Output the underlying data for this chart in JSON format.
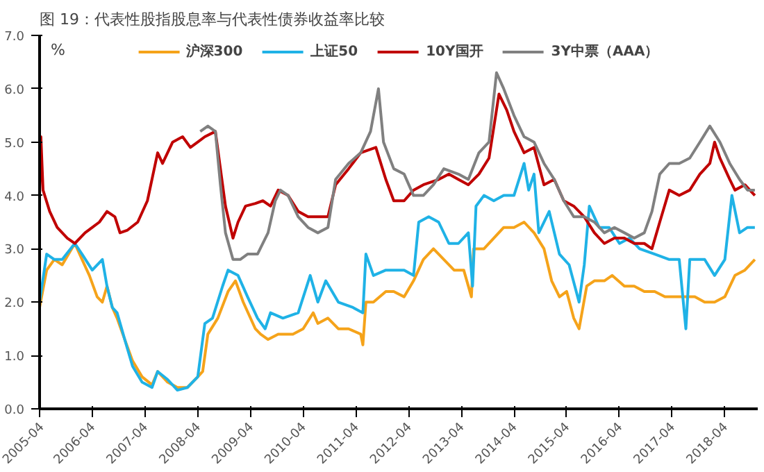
{
  "chart_data": {
    "type": "line",
    "title": "图 19：代表性股指股息率与代表性债券收益率比较",
    "ylabel": "%",
    "xlim": [
      "2005-04-01",
      "2018-11-15"
    ],
    "xticks": [
      "2005-04",
      "2006-04",
      "2007-04",
      "2008-04",
      "2009-04",
      "2010-04",
      "2011-04",
      "2012-04",
      "2013-04",
      "2014-04",
      "2015-04",
      "2016-04",
      "2017-04",
      "2018-04"
    ],
    "ylim": [
      0,
      7
    ],
    "yticks": [
      {
        "value": 0,
        "label": "0.0"
      },
      {
        "value": 1,
        "label": "1.0"
      },
      {
        "value": 2,
        "label": "2.0"
      },
      {
        "value": 3,
        "label": "3.0"
      },
      {
        "value": 4,
        "label": "4.0"
      },
      {
        "value": 5,
        "label": "5.0"
      },
      {
        "value": 6,
        "label": "6.0"
      },
      {
        "value": 7,
        "label": "7.0"
      }
    ],
    "grid": false,
    "legend": "top",
    "marker": "none",
    "line_style": "solid",
    "series": [
      {
        "name": "沪深300",
        "color": "#f5a31a",
        "x": [
          "2005-04-01",
          "2005-05-20",
          "2005-07-12",
          "2005-09-05",
          "2005-12-01",
          "2006-01-20",
          "2006-03-12",
          "2006-05-05",
          "2006-06-10",
          "2006-07-12",
          "2006-08-18",
          "2006-09-20",
          "2006-11-12",
          "2007-01-05",
          "2007-03-12",
          "2007-05-20",
          "2007-06-28",
          "2007-09-05",
          "2007-11-12",
          "2008-01-20",
          "2008-04-01",
          "2008-05-05",
          "2008-06-10",
          "2008-08-18",
          "2008-10-28",
          "2008-12-18",
          "2009-02-10",
          "2009-05-05",
          "2009-06-10",
          "2009-08-01",
          "2009-10-10",
          "2010-01-20",
          "2010-04-01",
          "2010-06-10",
          "2010-07-12",
          "2010-09-20",
          "2010-12-01",
          "2011-02-10",
          "2011-05-05",
          "2011-05-20",
          "2011-06-10",
          "2011-08-01",
          "2011-10-26",
          "2011-12-20",
          "2012-03-01",
          "2012-05-05",
          "2012-07-12",
          "2012-09-20",
          "2012-12-01",
          "2013-02-10",
          "2013-04-18",
          "2013-06-10",
          "2013-06-26",
          "2013-09-05",
          "2013-11-12",
          "2014-01-20",
          "2014-04-01",
          "2014-06-10",
          "2014-08-18",
          "2014-10-26",
          "2014-12-18",
          "2015-02-10",
          "2015-04-01",
          "2015-05-20",
          "2015-06-26",
          "2015-08-18",
          "2015-10-10",
          "2015-12-18",
          "2016-02-10",
          "2016-05-05",
          "2016-07-12",
          "2016-09-20",
          "2016-12-01",
          "2017-02-10",
          "2017-04-18",
          "2017-06-26",
          "2017-09-05",
          "2017-11-12",
          "2018-01-20",
          "2018-04-01",
          "2018-06-10",
          "2018-08-18",
          "2018-10-26"
        ],
        "values": [
          1.9,
          2.6,
          2.8,
          2.7,
          3.1,
          2.8,
          2.5,
          2.1,
          2.0,
          2.3,
          1.9,
          1.7,
          1.3,
          0.9,
          0.6,
          0.45,
          0.7,
          0.5,
          0.4,
          0.4,
          0.6,
          0.7,
          1.4,
          1.7,
          2.2,
          2.4,
          2.0,
          1.5,
          1.4,
          1.3,
          1.4,
          1.4,
          1.5,
          1.8,
          1.6,
          1.7,
          1.5,
          1.5,
          1.4,
          1.2,
          2.0,
          2.0,
          2.2,
          2.2,
          2.1,
          2.4,
          2.8,
          3.0,
          2.8,
          2.6,
          2.6,
          2.1,
          3.0,
          3.0,
          3.2,
          3.4,
          3.4,
          3.5,
          3.3,
          3.0,
          2.4,
          2.1,
          2.2,
          1.7,
          1.5,
          2.3,
          2.4,
          2.4,
          2.5,
          2.3,
          2.3,
          2.2,
          2.2,
          2.1,
          2.1,
          2.1,
          2.1,
          2.0,
          2.0,
          2.1,
          2.5,
          2.6,
          2.8
        ]
      },
      {
        "name": "上证50",
        "color": "#1fb2e6",
        "x": [
          "2005-04-01",
          "2005-05-20",
          "2005-07-12",
          "2005-09-05",
          "2005-12-01",
          "2006-01-20",
          "2006-04-01",
          "2006-06-10",
          "2006-07-12",
          "2006-08-18",
          "2006-09-20",
          "2006-11-12",
          "2007-01-05",
          "2007-03-12",
          "2007-05-20",
          "2007-06-28",
          "2007-09-05",
          "2007-11-12",
          "2008-01-20",
          "2008-04-01",
          "2008-05-20",
          "2008-07-12",
          "2008-09-20",
          "2008-10-28",
          "2009-01-05",
          "2009-03-12",
          "2009-05-20",
          "2009-07-12",
          "2009-08-18",
          "2009-11-12",
          "2010-02-26",
          "2010-05-20",
          "2010-07-12",
          "2010-09-05",
          "2010-12-01",
          "2011-03-12",
          "2011-05-20",
          "2011-06-10",
          "2011-08-01",
          "2011-10-26",
          "2011-12-20",
          "2012-03-01",
          "2012-05-05",
          "2012-06-10",
          "2012-08-18",
          "2012-10-26",
          "2013-01-05",
          "2013-03-12",
          "2013-05-20",
          "2013-06-18",
          "2013-07-12",
          "2013-09-05",
          "2013-11-12",
          "2014-01-20",
          "2014-04-01",
          "2014-06-10",
          "2014-07-12",
          "2014-08-18",
          "2014-09-20",
          "2014-12-01",
          "2015-02-10",
          "2015-04-18",
          "2015-06-26",
          "2015-08-01",
          "2015-09-05",
          "2015-11-12",
          "2016-01-20",
          "2016-04-01",
          "2016-06-10",
          "2016-08-18",
          "2016-12-01",
          "2017-03-12",
          "2017-05-20",
          "2017-07-05",
          "2017-08-01",
          "2017-11-12",
          "2018-01-20",
          "2018-04-01",
          "2018-05-20",
          "2018-07-12",
          "2018-09-05",
          "2018-10-26"
        ],
        "values": [
          2.0,
          2.9,
          2.8,
          2.8,
          3.1,
          2.9,
          2.6,
          2.8,
          2.3,
          1.9,
          1.8,
          1.3,
          0.8,
          0.5,
          0.4,
          0.7,
          0.55,
          0.35,
          0.4,
          0.6,
          1.6,
          1.7,
          2.3,
          2.6,
          2.5,
          2.1,
          1.7,
          1.5,
          1.8,
          1.7,
          1.8,
          2.5,
          2.0,
          2.4,
          2.0,
          1.9,
          1.8,
          2.9,
          2.5,
          2.6,
          2.6,
          2.6,
          2.5,
          3.5,
          3.6,
          3.5,
          3.1,
          3.1,
          3.3,
          2.3,
          3.8,
          4.0,
          3.9,
          4.0,
          4.0,
          4.6,
          4.1,
          4.4,
          3.3,
          3.7,
          2.9,
          2.7,
          2.0,
          2.7,
          3.8,
          3.4,
          3.4,
          3.1,
          3.2,
          3.0,
          2.9,
          2.8,
          2.8,
          1.5,
          2.8,
          2.8,
          2.5,
          2.8,
          4.0,
          3.3,
          3.4,
          3.4
        ]
      },
      {
        "name": "10Y国开",
        "color": "#c00000",
        "x": [
          "2005-04-01",
          "2005-04-10",
          "2005-04-25",
          "2005-06-10",
          "2005-08-01",
          "2005-10-10",
          "2005-12-01",
          "2006-02-10",
          "2006-04-01",
          "2006-05-20",
          "2006-07-12",
          "2006-09-05",
          "2006-10-10",
          "2006-12-01",
          "2007-02-10",
          "2007-04-18",
          "2007-06-28",
          "2007-08-01",
          "2007-10-10",
          "2007-12-18",
          "2008-02-10",
          "2008-04-01",
          "2008-05-20",
          "2008-08-01",
          "2008-09-05",
          "2008-10-10",
          "2008-12-01",
          "2009-01-05",
          "2009-02-26",
          "2009-05-05",
          "2009-06-26",
          "2009-08-18",
          "2009-10-10",
          "2009-12-18",
          "2010-02-26",
          "2010-05-05",
          "2010-07-12",
          "2010-09-20",
          "2010-11-12",
          "2011-02-10",
          "2011-05-05",
          "2011-08-18",
          "2011-10-26",
          "2011-12-20",
          "2012-03-01",
          "2012-05-05",
          "2012-07-12",
          "2012-10-26",
          "2013-01-05",
          "2013-03-12",
          "2013-05-20",
          "2013-08-01",
          "2013-10-10",
          "2013-12-18",
          "2014-02-10",
          "2014-04-01",
          "2014-06-10",
          "2014-08-18",
          "2014-10-26",
          "2015-01-05",
          "2015-03-12",
          "2015-05-20",
          "2015-08-01",
          "2015-10-10",
          "2015-12-18",
          "2016-02-26",
          "2016-05-05",
          "2016-07-12",
          "2016-09-20",
          "2016-11-12",
          "2017-01-05",
          "2017-03-12",
          "2017-05-20",
          "2017-08-01",
          "2017-10-10",
          "2017-12-18",
          "2018-01-20",
          "2018-02-26",
          "2018-04-01",
          "2018-05-05",
          "2018-06-10",
          "2018-08-18",
          "2018-10-26"
        ],
        "values": [
          4.0,
          5.1,
          4.1,
          3.7,
          3.4,
          3.2,
          3.1,
          3.3,
          3.4,
          3.5,
          3.7,
          3.6,
          3.3,
          3.35,
          3.5,
          3.9,
          4.8,
          4.6,
          5.0,
          5.1,
          4.9,
          5.0,
          5.1,
          5.2,
          4.5,
          3.8,
          3.2,
          3.5,
          3.8,
          3.85,
          3.9,
          3.8,
          4.1,
          4.0,
          3.7,
          3.6,
          3.6,
          3.6,
          4.2,
          4.5,
          4.8,
          4.9,
          4.3,
          3.9,
          3.9,
          4.1,
          4.2,
          4.3,
          4.4,
          4.3,
          4.2,
          4.4,
          4.7,
          5.9,
          5.6,
          5.2,
          4.8,
          4.9,
          4.2,
          4.3,
          3.9,
          3.8,
          3.6,
          3.3,
          3.1,
          3.2,
          3.2,
          3.1,
          3.1,
          3.0,
          3.5,
          4.1,
          4.0,
          4.1,
          4.4,
          4.6,
          5.0,
          4.7,
          4.5,
          4.3,
          4.1,
          4.2,
          4.0
        ]
      },
      {
        "name": "3Y中票（AAA）",
        "color": "#808080",
        "x": [
          "2008-04-18",
          "2008-06-10",
          "2008-08-01",
          "2008-09-05",
          "2008-10-10",
          "2008-12-01",
          "2009-01-20",
          "2009-03-12",
          "2009-05-20",
          "2009-08-01",
          "2009-09-20",
          "2009-10-26",
          "2009-12-18",
          "2010-02-26",
          "2010-05-05",
          "2010-07-12",
          "2010-09-20",
          "2010-11-12",
          "2011-02-10",
          "2011-05-05",
          "2011-07-12",
          "2011-09-05",
          "2011-10-10",
          "2011-12-20",
          "2012-03-01",
          "2012-05-05",
          "2012-07-12",
          "2012-09-20",
          "2012-12-01",
          "2013-03-12",
          "2013-05-20",
          "2013-08-01",
          "2013-10-10",
          "2013-12-01",
          "2014-01-20",
          "2014-04-01",
          "2014-06-10",
          "2014-08-18",
          "2014-10-26",
          "2015-01-05",
          "2015-03-12",
          "2015-05-20",
          "2015-08-01",
          "2015-10-10",
          "2015-12-18",
          "2016-02-26",
          "2016-05-05",
          "2016-07-12",
          "2016-09-20",
          "2016-11-12",
          "2017-01-05",
          "2017-03-12",
          "2017-05-20",
          "2017-08-01",
          "2017-10-10",
          "2017-12-18",
          "2018-02-26",
          "2018-05-05",
          "2018-07-12",
          "2018-09-05",
          "2018-10-26"
        ],
        "values": [
          5.2,
          5.3,
          5.2,
          4.2,
          3.3,
          2.8,
          2.8,
          2.9,
          2.9,
          3.3,
          3.9,
          4.1,
          4.0,
          3.6,
          3.4,
          3.3,
          3.4,
          4.3,
          4.6,
          4.8,
          5.2,
          6.0,
          5.0,
          4.5,
          4.4,
          4.0,
          4.0,
          4.2,
          4.5,
          4.4,
          4.3,
          4.8,
          5.0,
          6.3,
          6.0,
          5.5,
          5.1,
          5.0,
          4.6,
          4.3,
          3.9,
          3.6,
          3.6,
          3.5,
          3.3,
          3.4,
          3.3,
          3.2,
          3.3,
          3.7,
          4.4,
          4.6,
          4.6,
          4.7,
          5.0,
          5.3,
          5.0,
          4.6,
          4.3,
          4.1,
          4.1
        ]
      }
    ]
  }
}
